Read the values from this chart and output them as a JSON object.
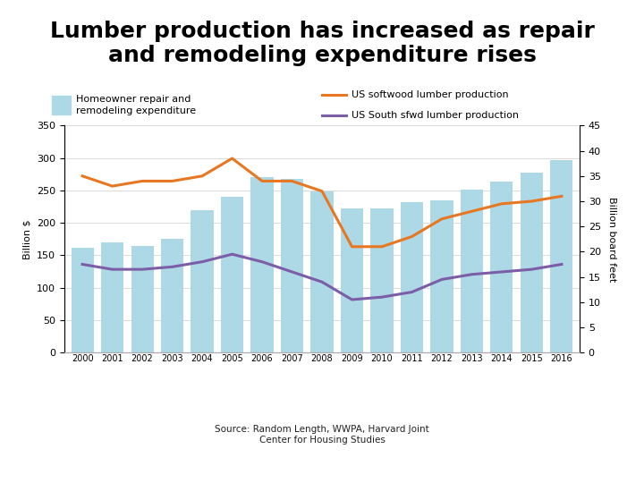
{
  "title": "Lumber production has increased as repair\nand remodeling expenditure rises",
  "years": [
    2000,
    2001,
    2002,
    2003,
    2004,
    2005,
    2006,
    2007,
    2008,
    2009,
    2010,
    2011,
    2012,
    2013,
    2014,
    2015,
    2016
  ],
  "bar_values": [
    162,
    170,
    165,
    175,
    220,
    240,
    270,
    268,
    248,
    222,
    222,
    232,
    235,
    251,
    264,
    278,
    297
  ],
  "softwood_production": [
    35.0,
    33.0,
    34.0,
    34.0,
    35.0,
    38.5,
    34.0,
    34.0,
    32.0,
    21.0,
    21.0,
    23.0,
    26.5,
    28.0,
    29.5,
    30.0,
    31.0
  ],
  "south_sfwd_production": [
    17.5,
    16.5,
    16.5,
    17.0,
    18.0,
    19.5,
    18.0,
    16.0,
    14.0,
    10.5,
    11.0,
    12.0,
    14.5,
    15.5,
    16.0,
    16.5,
    17.5
  ],
  "bar_color": "#add8e6",
  "softwood_color": "#e87722",
  "south_color": "#7b5ea7",
  "ylabel_left": "Billion $",
  "ylabel_right": "Billion board feet",
  "ylim_left": [
    0,
    350
  ],
  "ylim_right": [
    0,
    45
  ],
  "yticks_left": [
    0,
    50,
    100,
    150,
    200,
    250,
    300,
    350
  ],
  "yticks_right": [
    0,
    5,
    10,
    15,
    20,
    25,
    30,
    35,
    40,
    45
  ],
  "background_color": "#ffffff",
  "legend_bar_label": "Homeowner repair and\nremodeling expenditure",
  "legend_softwood_label": "US softwood lumber production",
  "legend_south_label": "US South sfwd lumber production",
  "source_text": "Source: Random Length, WWPA, Harvard Joint\nCenter for Housing Studies",
  "title_fontsize": 18,
  "axis_fontsize": 8,
  "legend_fontsize": 8
}
